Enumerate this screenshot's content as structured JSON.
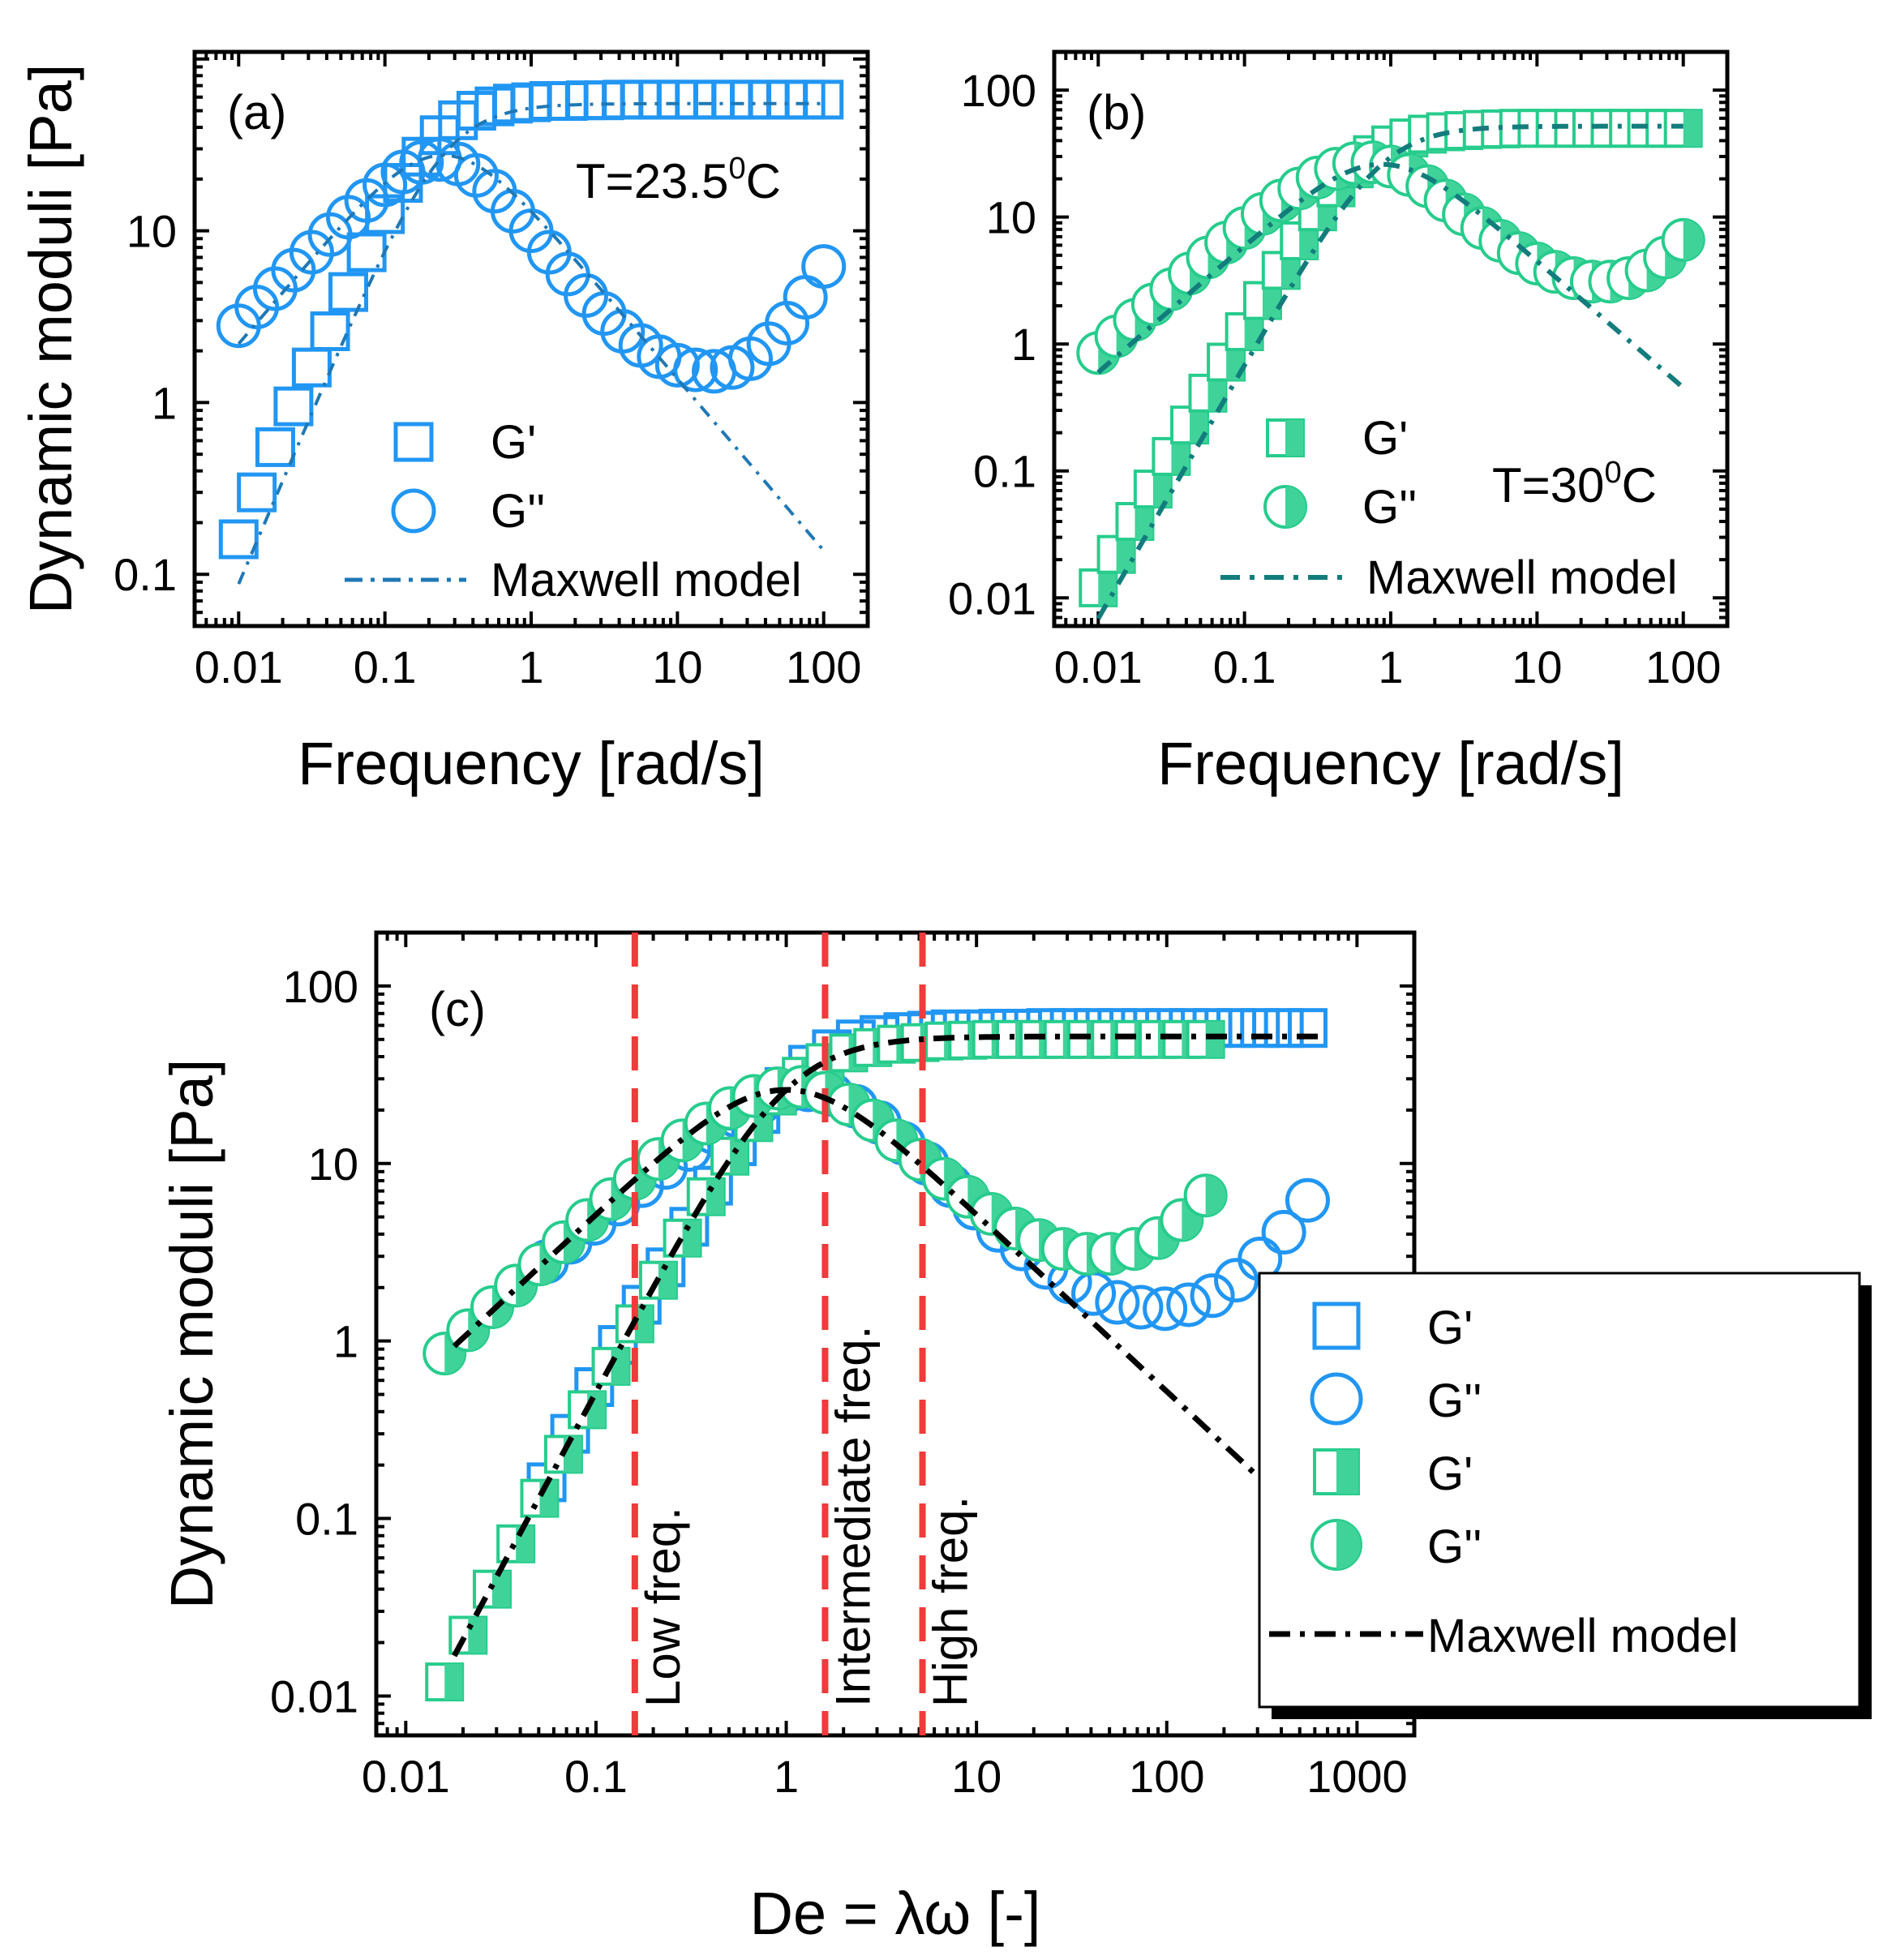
{
  "figure": {
    "description_colors": {
      "blue": "#2196f3",
      "green": "#26cc8c",
      "green_fill": "#3fd39a",
      "maxwell_blue": "#1f78b4",
      "maxwell_teal": "#137c7c",
      "red": "#ee3b3b"
    }
  },
  "chart_data": [
    {
      "panel": "a",
      "type": "scatter",
      "panel_label": "(a)",
      "annotation": {
        "text": "T=23.5",
        "sup": "0",
        "unit": "C"
      },
      "xlabel": "Frequency [rad/s]",
      "ylabel": "Dynamic moduli [Pa]",
      "xscale": "log",
      "yscale": "log",
      "xlim": [
        0.005,
        200
      ],
      "ylim": [
        0.05,
        110
      ],
      "xticks": [
        0.01,
        0.1,
        1,
        10,
        100
      ],
      "xtick_labels": [
        "0.01",
        "0.1",
        "1",
        "10",
        "100"
      ],
      "yticks": [
        0.1,
        1,
        10
      ],
      "ytick_labels": [
        "0.1",
        "1",
        "10"
      ],
      "legend": [
        "G'",
        "G''",
        "Maxwell model"
      ],
      "series": [
        {
          "name": "G'",
          "marker": "open-square",
          "x": [
            0.01,
            0.0133,
            0.0178,
            0.0237,
            0.0316,
            0.0422,
            0.0562,
            0.075,
            0.1,
            0.133,
            0.178,
            0.237,
            0.316,
            0.422,
            0.562,
            0.75,
            1,
            1.33,
            1.78,
            2.37,
            3.16,
            4.22,
            5.62,
            7.5,
            10,
            13.3,
            17.8,
            23.7,
            31.6,
            42.2,
            56.2,
            75,
            100
          ],
          "y": [
            0.16,
            0.3,
            0.55,
            0.95,
            1.6,
            2.6,
            4.4,
            7.5,
            12.5,
            19,
            27,
            36,
            44,
            50,
            53,
            55,
            56,
            57,
            57,
            57.5,
            57.5,
            58,
            58,
            58,
            58,
            58,
            58,
            58,
            58,
            58,
            58,
            58,
            58
          ]
        },
        {
          "name": "G''",
          "marker": "open-circle",
          "x": [
            0.01,
            0.0133,
            0.0178,
            0.0237,
            0.0316,
            0.0422,
            0.0562,
            0.075,
            0.1,
            0.133,
            0.178,
            0.237,
            0.316,
            0.422,
            0.562,
            0.75,
            1,
            1.33,
            1.78,
            2.37,
            3.16,
            4.22,
            5.62,
            7.5,
            10,
            13.3,
            17.8,
            23.7,
            31.6,
            42.2,
            56.2,
            75,
            100
          ],
          "y": [
            2.8,
            3.6,
            4.6,
            5.9,
            7.5,
            9.5,
            12,
            15,
            18.5,
            22,
            25,
            26,
            24.5,
            21,
            17,
            13,
            10,
            7.5,
            5.6,
            4.2,
            3.3,
            2.6,
            2.15,
            1.85,
            1.65,
            1.55,
            1.52,
            1.6,
            1.8,
            2.2,
            2.9,
            4.1,
            6.2
          ]
        },
        {
          "name": "Maxwell model",
          "style": "dash-dot",
          "kind": "maxwell",
          "G0": 55,
          "lambda": 4.0,
          "x_range": [
            0.01,
            100
          ],
          "output": "both"
        }
      ]
    },
    {
      "panel": "b",
      "type": "scatter",
      "panel_label": "(b)",
      "annotation": {
        "text": "T=30",
        "sup": "0",
        "unit": "C"
      },
      "xlabel": "Frequency [rad/s]",
      "ylabel": "",
      "xscale": "log",
      "yscale": "log",
      "xlim": [
        0.005,
        200
      ],
      "ylim": [
        0.006,
        200
      ],
      "xticks": [
        0.01,
        0.1,
        1,
        10,
        100
      ],
      "xtick_labels": [
        "0.01",
        "0.1",
        "1",
        "10",
        "100"
      ],
      "yticks": [
        0.01,
        0.1,
        1,
        10,
        100
      ],
      "ytick_labels": [
        "0.01",
        "0.1",
        "1",
        "10",
        "100"
      ],
      "legend": [
        "G'",
        "G''",
        "Maxwell model"
      ],
      "series": [
        {
          "name": "G'",
          "marker": "half-square",
          "x": [
            0.01,
            0.0133,
            0.0178,
            0.0237,
            0.0316,
            0.0422,
            0.0562,
            0.075,
            0.1,
            0.133,
            0.178,
            0.237,
            0.316,
            0.422,
            0.562,
            0.75,
            1,
            1.33,
            1.78,
            2.37,
            3.16,
            4.22,
            5.62,
            7.5,
            10,
            13.3,
            17.8,
            23.7,
            31.6,
            42.2,
            56.2,
            75,
            100
          ],
          "y": [
            0.012,
            0.022,
            0.04,
            0.072,
            0.13,
            0.23,
            0.41,
            0.72,
            1.25,
            2.2,
            3.8,
            6.5,
            11,
            17,
            24,
            31,
            37,
            42,
            45,
            47,
            48,
            49,
            49.5,
            50,
            50,
            50,
            50,
            50,
            50,
            50,
            50,
            50,
            50
          ]
        },
        {
          "name": "G''",
          "marker": "half-circle",
          "x": [
            0.01,
            0.0133,
            0.0178,
            0.0237,
            0.0316,
            0.0422,
            0.0562,
            0.075,
            0.1,
            0.133,
            0.178,
            0.237,
            0.316,
            0.422,
            0.562,
            0.75,
            1,
            1.33,
            1.78,
            2.37,
            3.16,
            4.22,
            5.62,
            7.5,
            10,
            13.3,
            17.8,
            23.7,
            31.6,
            42.2,
            56.2,
            75,
            100
          ],
          "y": [
            0.85,
            1.15,
            1.55,
            2.05,
            2.7,
            3.6,
            4.8,
            6.3,
            8.2,
            10.6,
            13.5,
            16.8,
            20.5,
            24,
            26.5,
            27,
            25,
            21.5,
            17.5,
            13.5,
            10.5,
            8.2,
            6.5,
            5.2,
            4.3,
            3.7,
            3.3,
            3.1,
            3.1,
            3.3,
            3.8,
            4.8,
            6.6
          ]
        },
        {
          "name": "Maxwell model",
          "style": "dash-dot",
          "kind": "maxwell",
          "G0": 52,
          "lambda": 1.15,
          "x_range": [
            0.01,
            100
          ],
          "output": "both"
        }
      ]
    },
    {
      "panel": "c",
      "type": "scatter",
      "panel_label": "(c)",
      "xlabel": "De = λω [-]",
      "ylabel": "Dynamic moduli [Pa]",
      "xscale": "log",
      "yscale": "log",
      "xlim": [
        0.007,
        2000
      ],
      "ylim": [
        0.006,
        200
      ],
      "xticks": [
        0.01,
        0.1,
        1,
        10,
        100,
        1000
      ],
      "xtick_labels": [
        "0.01",
        "0.1",
        "1",
        "10",
        "100",
        "1000"
      ],
      "yticks": [
        0.01,
        0.1,
        1,
        10,
        100
      ],
      "ytick_labels": [
        "0.01",
        "0.1",
        "1",
        "10",
        "100"
      ],
      "legend": [
        "G'",
        "G''",
        "G'",
        "G''",
        "Maxwell model"
      ],
      "vlines": [
        {
          "x": 0.16,
          "label": "Low freq."
        },
        {
          "x": 1.6,
          "label": "Intermediate freq."
        },
        {
          "x": 5.2,
          "label": "High freq."
        }
      ],
      "series": [
        {
          "name": "G'",
          "marker": "open-square",
          "scaled_from": "a",
          "x_factor": 5.5,
          "y_factor": 1.0
        },
        {
          "name": "G''",
          "marker": "open-circle",
          "scaled_from": "a",
          "x_factor": 5.5,
          "y_factor": 1.0
        },
        {
          "name": "G'",
          "marker": "half-square",
          "scaled_from": "b",
          "x_factor": 1.6,
          "y_factor": 1.0
        },
        {
          "name": "G''",
          "marker": "half-circle",
          "scaled_from": "b",
          "x_factor": 1.6,
          "y_factor": 1.0
        },
        {
          "name": "Maxwell model",
          "style": "dash-dot",
          "kind": "maxwell",
          "G0": 52,
          "lambda": 1.0,
          "x_range": [
            0.018,
            700
          ],
          "output": "both"
        }
      ]
    }
  ]
}
